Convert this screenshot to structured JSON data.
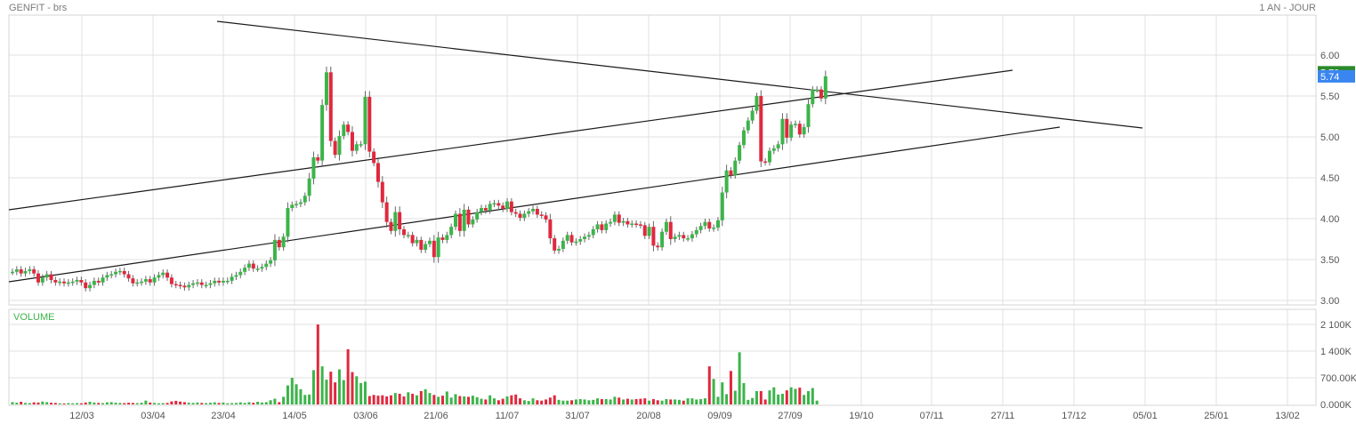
{
  "header": {
    "title": "GENFIT - brs",
    "period": "1 AN - JOUR"
  },
  "colors": {
    "up": "#3cb44a",
    "down": "#e0283e",
    "grid": "#e1e1e1",
    "trend": "#1a1a1a",
    "last_badge": "#3a86f0",
    "marker_badge": "#2c8a2c"
  },
  "chart_data": [
    {
      "type": "candlestick",
      "title": "GENFIT - brs",
      "ylim": [
        2.95,
        6.38
      ],
      "y_ticks": [
        "6.00",
        "5.50",
        "5.00",
        "4.50",
        "4.00",
        "3.50",
        "3.00"
      ],
      "x_tick_labels": [
        "12/03",
        "03/04",
        "23/04",
        "14/05",
        "03/06",
        "21/06",
        "11/07",
        "31/07",
        "20/08",
        "09/09",
        "27/09",
        "19/10",
        "07/11",
        "27/11",
        "17/12",
        "05/01",
        "25/01",
        "13/02"
      ],
      "last_price": "5.74",
      "marker_label": "5.79",
      "close": [
        3.35,
        3.38,
        3.33,
        3.36,
        3.38,
        3.33,
        3.22,
        3.28,
        3.32,
        3.25,
        3.22,
        3.23,
        3.21,
        3.22,
        3.23,
        3.25,
        3.22,
        3.15,
        3.19,
        3.24,
        3.22,
        3.28,
        3.31,
        3.32,
        3.35,
        3.36,
        3.32,
        3.27,
        3.21,
        3.22,
        3.23,
        3.26,
        3.22,
        3.28,
        3.31,
        3.34,
        3.28,
        3.2,
        3.19,
        3.18,
        3.16,
        3.19,
        3.21,
        3.22,
        3.19,
        3.19,
        3.21,
        3.24,
        3.22,
        3.24,
        3.24,
        3.29,
        3.31,
        3.35,
        3.4,
        3.45,
        3.39,
        3.39,
        3.41,
        3.45,
        3.49,
        3.74,
        3.65,
        3.78,
        4.13,
        4.17,
        4.18,
        4.2,
        4.28,
        4.49,
        4.75,
        4.71,
        5.39,
        5.79,
        4.95,
        4.78,
        5.01,
        5.15,
        5.06,
        4.83,
        4.91,
        4.91,
        5.49,
        4.82,
        4.68,
        4.45,
        4.2,
        3.96,
        3.85,
        4.08,
        3.87,
        3.8,
        3.8,
        3.7,
        3.74,
        3.62,
        3.69,
        3.73,
        3.53,
        3.77,
        3.74,
        3.8,
        3.9,
        4.06,
        3.85,
        4.11,
        3.93,
        3.99,
        4.08,
        4.13,
        4.1,
        4.18,
        4.19,
        4.16,
        4.12,
        4.21,
        4.08,
        4.06,
        4.01,
        4.06,
        4.09,
        4.12,
        4.05,
        4.04,
        3.99,
        3.76,
        3.61,
        3.63,
        3.73,
        3.8,
        3.71,
        3.72,
        3.75,
        3.78,
        3.8,
        3.87,
        3.93,
        3.86,
        3.94,
        3.96,
        4.05,
        3.95,
        3.97,
        3.93,
        3.94,
        3.93,
        3.92,
        3.79,
        3.9,
        3.67,
        3.65,
        3.84,
        3.96,
        3.75,
        3.78,
        3.8,
        3.76,
        3.76,
        3.81,
        3.86,
        3.91,
        3.96,
        3.88,
        3.89,
        3.98,
        4.32,
        4.59,
        4.53,
        4.71,
        4.9,
        5.08,
        5.2,
        5.32,
        5.5,
        4.7,
        4.69,
        4.83,
        4.86,
        4.91,
        5.22,
        4.99,
        5.15,
        5.16,
        5.03,
        5.12,
        5.4,
        5.58,
        5.58,
        5.47,
        5.74
      ]
    },
    {
      "type": "bar",
      "title": "VOLUME",
      "ylim": [
        0,
        2360
      ],
      "y_ticks": [
        "2 100K",
        "1 400K",
        "700.00K",
        "0.000K"
      ],
      "values": [
        60,
        45,
        70,
        40,
        35,
        55,
        50,
        75,
        60,
        45,
        40,
        30,
        25,
        35,
        30,
        35,
        30,
        50,
        70,
        50,
        40,
        35,
        55,
        60,
        45,
        40,
        35,
        45,
        40,
        35,
        45,
        100,
        50,
        40,
        30,
        35,
        40,
        80,
        95,
        75,
        60,
        45,
        40,
        50,
        40,
        35,
        45,
        55,
        40,
        50,
        30,
        35,
        40,
        55,
        40,
        60,
        45,
        70,
        50,
        60,
        110,
        150,
        60,
        200,
        500,
        700,
        530,
        400,
        250,
        260,
        900,
        2100,
        1000,
        650,
        860,
        580,
        920,
        640,
        1450,
        850,
        740,
        560,
        600,
        220,
        250,
        230,
        240,
        210,
        240,
        300,
        280,
        210,
        320,
        280,
        240,
        350,
        400,
        300,
        250,
        200,
        230,
        340,
        180,
        270,
        220,
        210,
        200,
        230,
        190,
        150,
        130,
        240,
        160,
        110,
        150,
        210,
        240,
        260,
        160,
        110,
        90,
        160,
        110,
        100,
        130,
        180,
        240,
        120,
        100,
        100,
        110,
        130,
        140,
        130,
        110,
        120,
        160,
        140,
        140,
        130,
        200,
        180,
        130,
        150,
        130,
        140,
        150,
        160,
        100,
        140,
        110,
        100,
        140,
        130,
        130,
        120,
        100,
        160,
        160,
        130,
        140,
        160,
        1000,
        670,
        200,
        580,
        270,
        880,
        360,
        1370,
        560,
        120,
        170,
        350,
        350,
        130,
        370,
        450,
        260,
        280,
        370,
        450,
        410,
        440,
        250,
        350,
        430,
        100
      ]
    }
  ]
}
